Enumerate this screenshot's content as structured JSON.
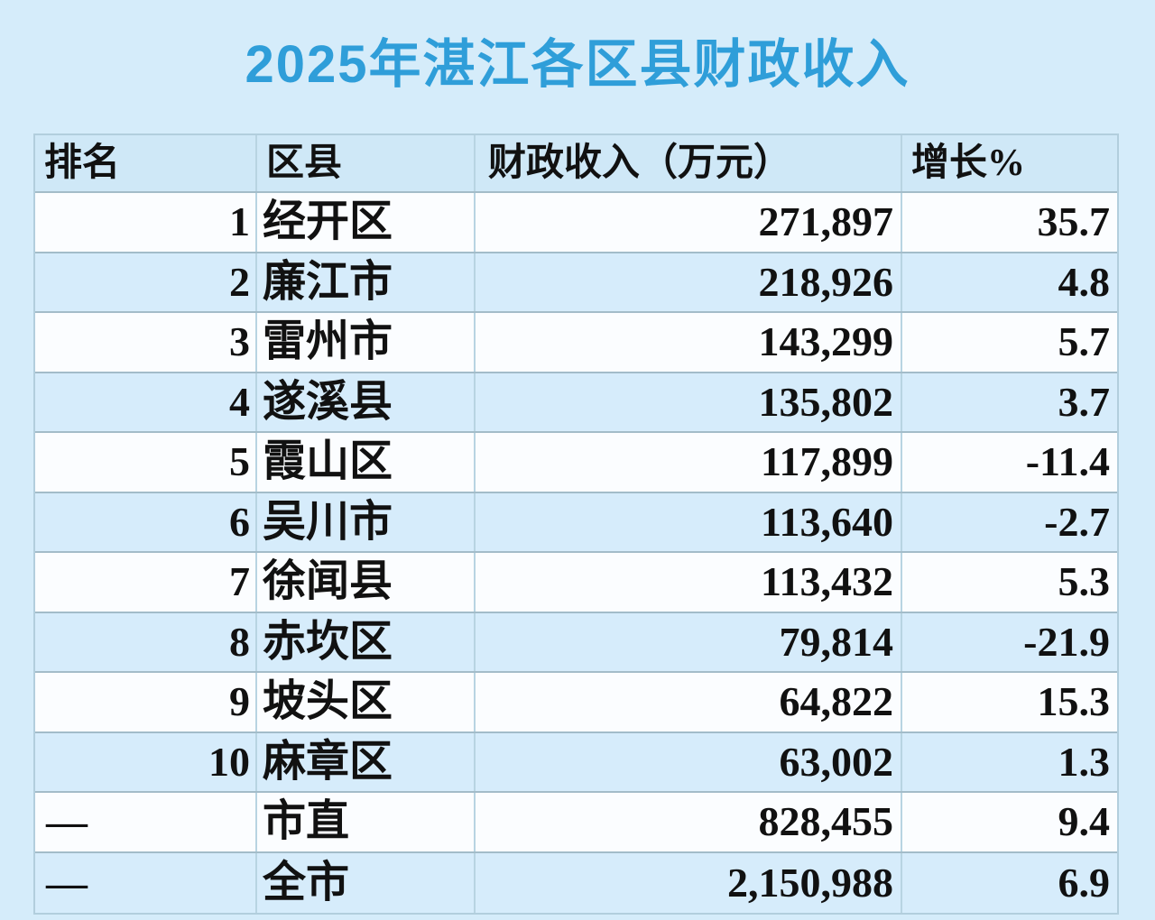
{
  "title": "2025年湛江各区县财政收入",
  "colors": {
    "page_background": "#d5ecfa",
    "title_blue": "#2f9ed9",
    "header_row_bg": "#cfe8f7",
    "row_white": "#fbfdff",
    "row_blue": "#d6ecfb",
    "border_horizontal": "#a3bcc9",
    "border_vertical": "#b8d4e2",
    "text": "#111111"
  },
  "chart_data": {
    "type": "table",
    "title": "2025年湛江各区县财政收入",
    "columns": [
      "排名",
      "区县",
      "财政收入（万元）",
      "增长%"
    ],
    "rows": [
      [
        "1",
        "经开区",
        "271,897",
        "35.7"
      ],
      [
        "2",
        "廉江市",
        "218,926",
        "4.8"
      ],
      [
        "3",
        "雷州市",
        "143,299",
        "5.7"
      ],
      [
        "4",
        "遂溪县",
        "135,802",
        "3.7"
      ],
      [
        "5",
        "霞山区",
        "117,899",
        "-11.4"
      ],
      [
        "6",
        "吴川市",
        "113,640",
        "-2.7"
      ],
      [
        "7",
        "徐闻县",
        "113,432",
        "5.3"
      ],
      [
        "8",
        "赤坎区",
        "79,814",
        "-21.9"
      ],
      [
        "9",
        "坡头区",
        "64,822",
        "15.3"
      ],
      [
        "10",
        "麻章区",
        "63,002",
        "1.3"
      ],
      [
        "—",
        "市直",
        "828,455",
        "9.4"
      ],
      [
        "—",
        "全市",
        "2,150,988",
        "6.9"
      ]
    ]
  }
}
